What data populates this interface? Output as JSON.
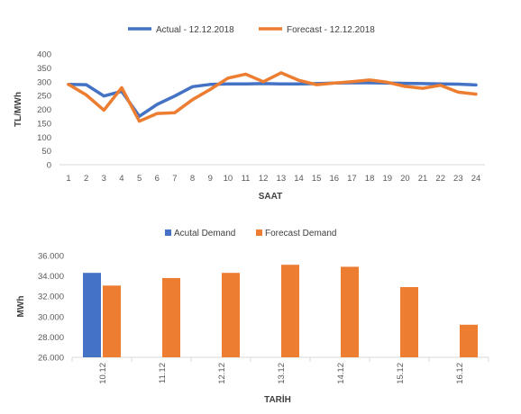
{
  "chart_data": [
    {
      "type": "line",
      "title": "",
      "xlabel": "SAAT",
      "ylabel": "TL/MWh",
      "ylim": [
        0,
        400
      ],
      "y_ticks": [
        "0",
        "50",
        "100",
        "150",
        "200",
        "250",
        "300",
        "350",
        "400"
      ],
      "x": [
        "1",
        "2",
        "3",
        "4",
        "5",
        "6",
        "7",
        "8",
        "9",
        "10",
        "11",
        "12",
        "13",
        "14",
        "15",
        "16",
        "17",
        "18",
        "19",
        "20",
        "21",
        "22",
        "23",
        "24"
      ],
      "grid": false,
      "legend_position": "top",
      "series": [
        {
          "name": "Actual - 12.12.2018",
          "color": "#4472C4",
          "values": [
            290,
            289,
            248,
            265,
            175,
            218,
            248,
            282,
            290,
            292,
            292,
            293,
            292,
            292,
            293,
            295,
            296,
            296,
            295,
            294,
            293,
            292,
            291,
            288
          ]
        },
        {
          "name": "Forecast - 12.12.2018",
          "color": "#ED7D31",
          "values": [
            290,
            252,
            197,
            278,
            157,
            185,
            188,
            235,
            272,
            313,
            327,
            300,
            332,
            305,
            289,
            295,
            300,
            306,
            298,
            283,
            276,
            287,
            262,
            255
          ]
        }
      ]
    },
    {
      "type": "bar",
      "title": "",
      "xlabel": "TARİH",
      "ylabel": "MWh",
      "ylim": [
        26000,
        36000
      ],
      "y_ticks": [
        "26.000",
        "28.000",
        "30.000",
        "32.000",
        "34.000",
        "36.000"
      ],
      "categories": [
        "10.12",
        "11.12",
        "12.12",
        "13.12",
        "14.12",
        "15.12",
        "16.12"
      ],
      "grid": false,
      "legend_position": "top",
      "series": [
        {
          "name": "Acutal Demand",
          "color": "#4472C4",
          "values": [
            34300,
            null,
            null,
            null,
            null,
            null,
            null
          ]
        },
        {
          "name": "Forecast Demand",
          "color": "#ED7D31",
          "values": [
            33050,
            33800,
            34300,
            35100,
            34900,
            32900,
            29200
          ]
        }
      ]
    }
  ]
}
